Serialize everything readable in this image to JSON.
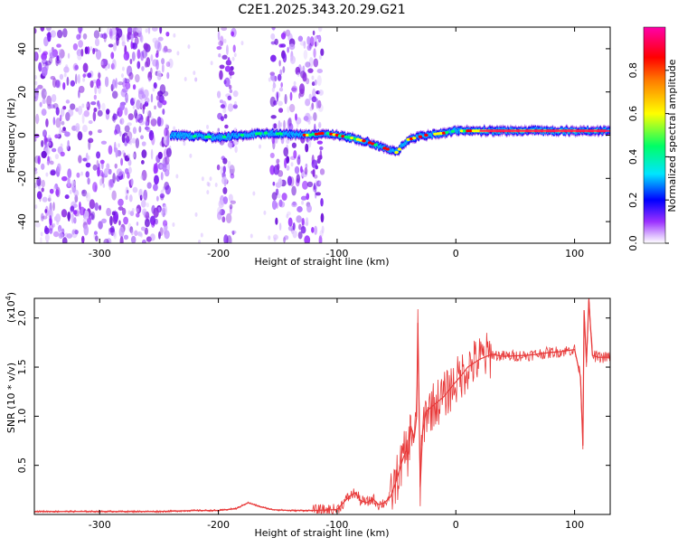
{
  "title": "C2E1.2025.343.20.29.G21",
  "chart_data": [
    {
      "type": "heatmap",
      "name": "spectrogram",
      "xlabel": "Height of straight line (km)",
      "ylabel": "Frequency (Hz)",
      "xlim": [
        -355,
        130
      ],
      "ylim": [
        -50,
        50
      ],
      "xticks": [
        -300,
        -200,
        -100,
        0,
        100
      ],
      "xtick_labels": [
        "-300",
        "-200",
        "-100",
        "0",
        "100"
      ],
      "yticks": [
        -40,
        -20,
        0,
        20,
        40
      ],
      "ytick_labels": [
        "-40",
        "-20",
        "0",
        "20",
        "40"
      ],
      "colorbar": {
        "label": "Normalized spectral amplitude",
        "range": [
          0,
          1
        ],
        "ticks": [
          0.0,
          0.2,
          0.4,
          0.6,
          0.8
        ],
        "tick_labels": [
          "0.0",
          "0.2",
          "0.4",
          "0.6",
          "0.8"
        ],
        "colors": [
          "#ffffff",
          "#9b30ff",
          "#0000ff",
          "#00e5ff",
          "#00ff66",
          "#ffff00",
          "#ff7f00",
          "#ff0000",
          "#ff00aa"
        ]
      },
      "signal_track": {
        "x": [
          -240,
          -200,
          -160,
          -125,
          -110,
          -90,
          -75,
          -60,
          -50,
          -40,
          -25,
          -10,
          0,
          30,
          60,
          90,
          130
        ],
        "freq_hz": [
          0,
          -1,
          1,
          0,
          1,
          -1,
          -3,
          -6,
          -8,
          -2,
          0,
          1,
          2,
          2,
          2,
          2,
          2
        ]
      },
      "noise_regions": [
        [
          -355,
          -240
        ],
        [
          -200,
          -185
        ],
        [
          -155,
          -112
        ]
      ]
    },
    {
      "type": "line",
      "name": "snr",
      "xlabel": "Height of straight line (km)",
      "ylabel": "SNR (10 * v/v)",
      "y_multiplier": "(x10",
      "y_multiplier_exp": "4",
      "y_multiplier_close": ")",
      "xlim": [
        -355,
        130
      ],
      "ylim": [
        0,
        2.2
      ],
      "xticks": [
        -300,
        -200,
        -100,
        0,
        100
      ],
      "xtick_labels": [
        "-300",
        "-200",
        "-100",
        "0",
        "100"
      ],
      "yticks": [
        0.5,
        1.0,
        1.5,
        2.0
      ],
      "ytick_labels": [
        "0.5",
        "1.0",
        "1.5",
        "2.0"
      ],
      "color": "#e83a3a",
      "x": [
        -355,
        -250,
        -220,
        -200,
        -185,
        -175,
        -165,
        -155,
        -140,
        -120,
        -100,
        -90,
        -85,
        -80,
        -75,
        -70,
        -65,
        -60,
        -55,
        -50,
        -45,
        -42,
        -40,
        -38,
        -35,
        -33,
        -32,
        -30,
        -28,
        -25,
        -20,
        -15,
        -10,
        -5,
        0,
        5,
        10,
        20,
        30,
        40,
        60,
        80,
        90,
        100,
        105,
        107,
        108,
        110,
        112,
        115,
        120,
        130
      ],
      "y": [
        0.03,
        0.03,
        0.04,
        0.04,
        0.06,
        0.12,
        0.08,
        0.05,
        0.04,
        0.04,
        0.05,
        0.18,
        0.22,
        0.14,
        0.12,
        0.16,
        0.1,
        0.12,
        0.18,
        0.35,
        0.55,
        0.65,
        0.62,
        0.9,
        0.78,
        1.0,
        1.95,
        0.28,
        0.85,
        1.05,
        1.1,
        1.15,
        1.2,
        1.28,
        1.35,
        1.42,
        1.5,
        1.58,
        1.63,
        1.61,
        1.62,
        1.65,
        1.66,
        1.68,
        1.4,
        0.7,
        2.08,
        1.55,
        2.18,
        1.62,
        1.6,
        1.6
      ]
    }
  ]
}
